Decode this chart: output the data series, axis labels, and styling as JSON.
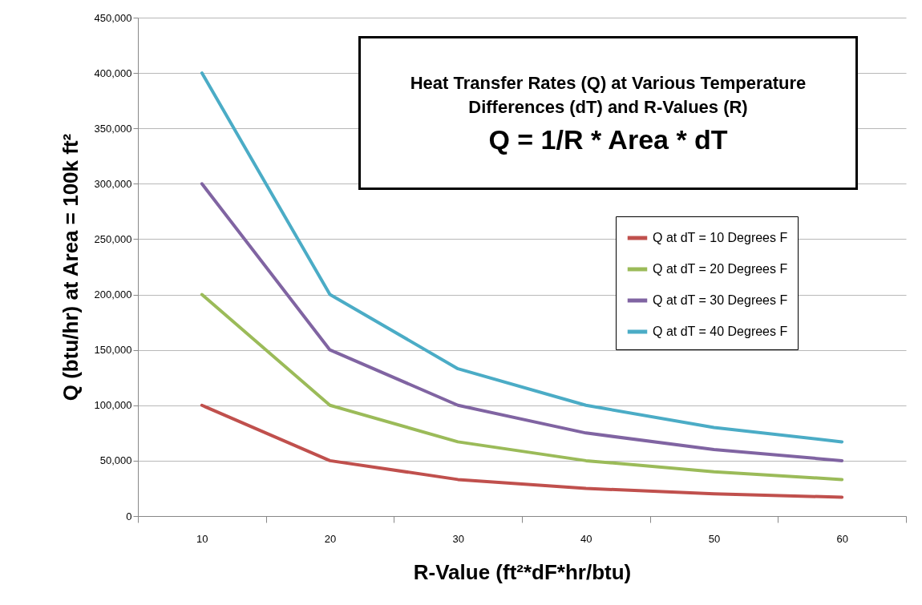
{
  "chart_data": {
    "type": "line",
    "title": "Heat Transfer Rates (Q) at Various Temperature Differences (dT) and R-Values (R)",
    "subtitle": "Q = 1/R * Area * dT",
    "xlabel": "R-Value (ft²*dF*hr/btu)",
    "ylabel": "Q (btu/hr) at Area = 100k ft²",
    "categories": [
      "10",
      "20",
      "30",
      "40",
      "50",
      "60"
    ],
    "series": [
      {
        "name": "Q at dT = 10 Degrees F",
        "color": "#c0504d",
        "values": [
          100000,
          50000,
          33000,
          25000,
          20000,
          17000
        ]
      },
      {
        "name": "Q at dT = 20 Degrees F",
        "color": "#9bbb59",
        "values": [
          200000,
          100000,
          67000,
          50000,
          40000,
          33000
        ]
      },
      {
        "name": "Q at dT = 30 Degrees F",
        "color": "#8064a2",
        "values": [
          300000,
          150000,
          100000,
          75000,
          60000,
          50000
        ]
      },
      {
        "name": "Q at dT = 40 Degrees F",
        "color": "#4bacc6",
        "values": [
          400000,
          200000,
          133000,
          100000,
          80000,
          67000
        ]
      }
    ],
    "ylim": [
      0,
      450000
    ],
    "yticks": [
      0,
      {
        "value": 50000,
        "label": "50,000"
      },
      {
        "value": 100000,
        "label": "100,000"
      },
      {
        "value": 150000,
        "label": "150,000"
      },
      {
        "value": 200000,
        "label": "200,000"
      },
      {
        "value": 250000,
        "label": "250,000"
      },
      {
        "value": 300000,
        "label": "300,000"
      },
      {
        "value": 350000,
        "label": "350,000"
      },
      {
        "value": 400000,
        "label": "400,000"
      },
      {
        "value": 450000,
        "label": "450,000"
      }
    ],
    "grid": "y",
    "legend": "right"
  }
}
